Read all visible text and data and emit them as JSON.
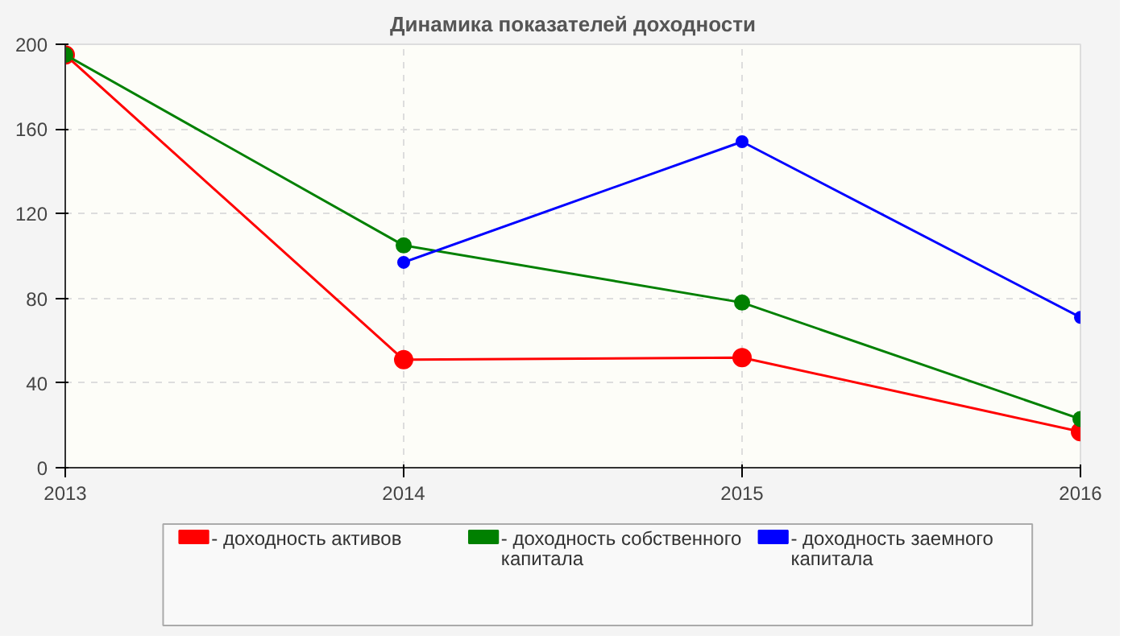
{
  "chart_data": {
    "type": "line",
    "title": "Динамика показателей доходности",
    "x": [
      2013,
      2014,
      2015,
      2016
    ],
    "xlim": [
      2013,
      2016
    ],
    "xticks": [
      2013,
      2014,
      2015,
      2016
    ],
    "ylim": [
      0,
      200
    ],
    "yticks": [
      0,
      40,
      80,
      120,
      160,
      200
    ],
    "series": [
      {
        "name": "- доходность активов",
        "color": "#ff0000",
        "values": [
          195,
          51,
          52,
          17
        ]
      },
      {
        "name": "- доходность собственного капитала",
        "color": "#008000",
        "values": [
          195,
          105,
          78,
          23
        ]
      },
      {
        "name": "- доходность заемного капитала",
        "color": "#0000ff",
        "values": [
          null,
          97,
          154,
          71
        ]
      }
    ],
    "grid": true,
    "legend": "bottom",
    "marker": "circle",
    "line_style": "solid"
  }
}
